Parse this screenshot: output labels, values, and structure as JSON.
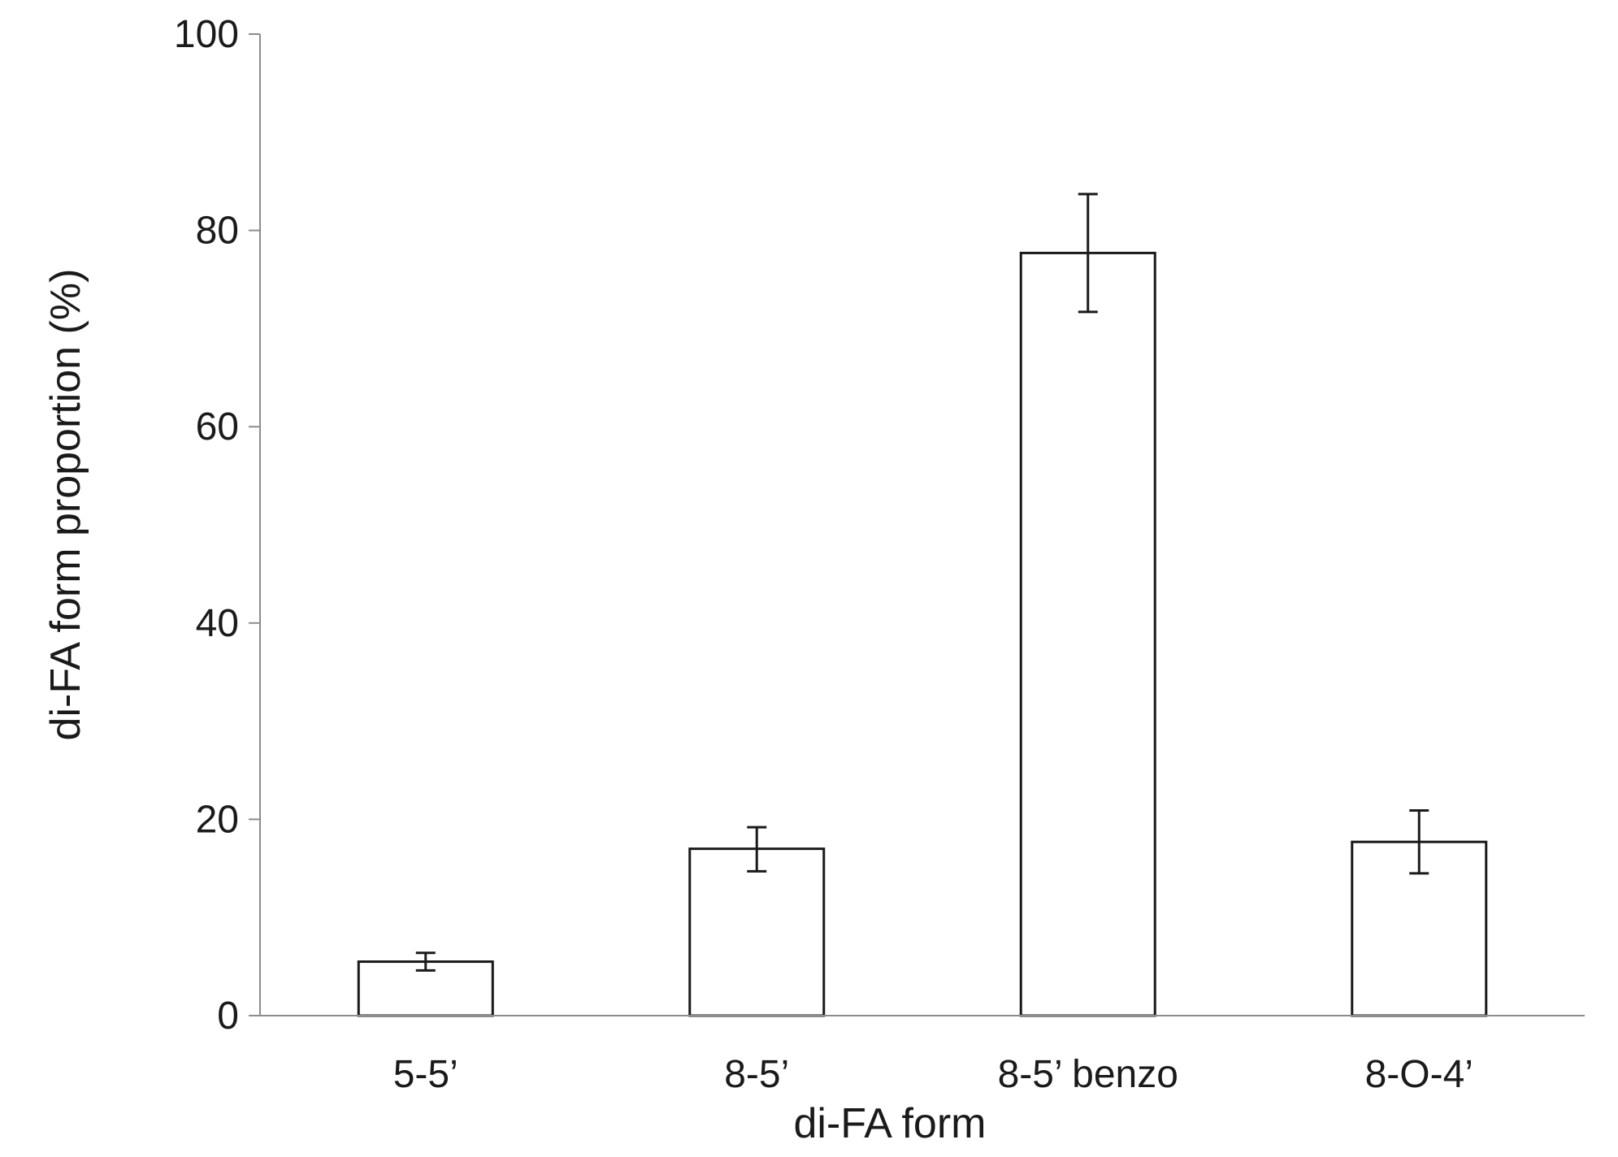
{
  "chart_data": {
    "type": "bar",
    "categories": [
      "5-5’",
      "8-5’",
      "8-5’ benzo",
      "8-O-4’"
    ],
    "values": [
      5.5,
      17.0,
      77.7,
      17.7
    ],
    "error": [
      [
        4.6,
        6.4
      ],
      [
        14.7,
        19.2
      ],
      [
        71.7,
        83.7
      ],
      [
        14.5,
        20.9
      ]
    ],
    "xlabel": "di-FA form",
    "ylabel": "di-FA form proportion (%)",
    "ylim": [
      0,
      100
    ],
    "yticks": [
      0,
      20,
      40,
      60,
      80,
      100
    ],
    "ytick_labels": [
      "0",
      "20",
      "40",
      "60",
      "80",
      "100"
    ],
    "grid": false,
    "legend": "none",
    "colors": {
      "bar_fill": "#ffffff",
      "bar_stroke": "#1a1a1a",
      "axis": "#8c8c8c",
      "text": "#1a1a1a"
    }
  }
}
